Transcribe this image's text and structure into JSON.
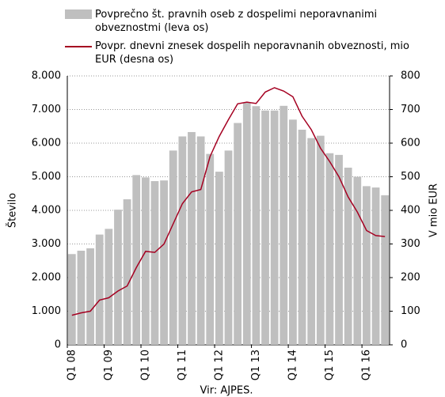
{
  "chart_data": {
    "type": "bar-line",
    "categories": [
      "Q1 08",
      null,
      null,
      null,
      "Q1 09",
      null,
      null,
      null,
      "Q1 10",
      null,
      null,
      null,
      "Q1 11",
      null,
      null,
      null,
      "Q1 12",
      null,
      null,
      null,
      "Q1 13",
      null,
      null,
      null,
      "Q1 14",
      null,
      null,
      null,
      "Q1 15",
      null,
      null,
      null,
      "Q1 16",
      null,
      null
    ],
    "series": [
      {
        "name": "Povprečno št. pravnih oseb z dospelimi neporavnanimi obveznostmi (leva os)",
        "type": "bar",
        "color": "#bfbfbf",
        "values": [
          2700,
          2800,
          2870,
          3280,
          3450,
          4020,
          4330,
          5050,
          4980,
          4870,
          4890,
          5780,
          6200,
          6330,
          6200,
          5680,
          5150,
          5780,
          6600,
          7200,
          7100,
          6970,
          6970,
          7110,
          6700,
          6400,
          6150,
          6220,
          5700,
          5650,
          5270,
          5000,
          4720,
          4680,
          4450
        ]
      },
      {
        "name": "Povpr. dnevni znesek dospelih neporavnanih obveznosti, mio EUR (desna os)",
        "type": "line",
        "axis": "y2",
        "color": "#a50021",
        "values": [
          88,
          95,
          100,
          133,
          140,
          160,
          175,
          230,
          278,
          275,
          300,
          360,
          420,
          455,
          462,
          560,
          620,
          670,
          717,
          722,
          718,
          752,
          765,
          755,
          738,
          680,
          640,
          585,
          545,
          500,
          440,
          395,
          340,
          325,
          322
        ]
      }
    ],
    "ylabel": "Število",
    "y2label": "V mio EUR",
    "source": "Vir: AJPES.",
    "ylim": [
      0,
      8000
    ],
    "yticks": [
      {
        "value": 0,
        "label": "0"
      },
      {
        "value": 1000,
        "label": "1.000"
      },
      {
        "value": 2000,
        "label": "2.000"
      },
      {
        "value": 3000,
        "label": "3.000"
      },
      {
        "value": 4000,
        "label": "4.000"
      },
      {
        "value": 5000,
        "label": "5.000"
      },
      {
        "value": 6000,
        "label": "6.000"
      },
      {
        "value": 7000,
        "label": "7.000"
      },
      {
        "value": 8000,
        "label": "8.000"
      }
    ],
    "y2lim": [
      0,
      800
    ],
    "y2ticks": [
      0,
      100,
      200,
      300,
      400,
      500,
      600,
      700,
      800
    ],
    "grid": true
  }
}
